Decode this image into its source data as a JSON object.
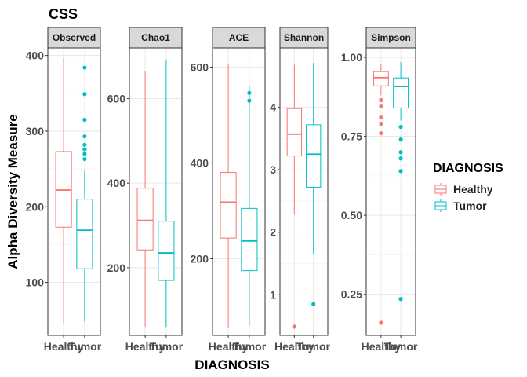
{
  "chart_data": {
    "type": "box",
    "title": "CSS",
    "xlabel": "DIAGNOSIS",
    "ylabel": "Alpha Diversity Measure",
    "legend": {
      "title": "DIAGNOSIS",
      "placement": "right",
      "entries": [
        {
          "label": "Healthy",
          "color": "#F8766D"
        },
        {
          "label": "Tumor",
          "color": "#00BFC4"
        }
      ]
    },
    "categories": [
      "Healthy",
      "Tumor"
    ],
    "grid": true,
    "facets": [
      {
        "name": "Observed",
        "ylim": [
          30,
          410
        ],
        "yticks": [
          100,
          200,
          300,
          400
        ],
        "yticklabels": [
          "100",
          "200",
          "300",
          "400"
        ],
        "boxes": [
          {
            "group": "Healthy",
            "min": 45,
            "q1": 173,
            "median": 222,
            "q3": 273,
            "max": 397
          },
          {
            "group": "Tumor",
            "min": 48,
            "q1": 118,
            "median": 169,
            "q3": 210,
            "max": 248
          }
        ],
        "outliers": {
          "Tumor": [
            384,
            349,
            315,
            293,
            282,
            276,
            270,
            263
          ]
        }
      },
      {
        "name": "Chao1",
        "ylim": [
          40,
          720
        ],
        "yticks": [
          200,
          400,
          600
        ],
        "yticklabels": [
          "200",
          "400",
          "600"
        ],
        "boxes": [
          {
            "group": "Healthy",
            "min": 60,
            "q1": 242,
            "median": 312,
            "q3": 388,
            "max": 665
          },
          {
            "group": "Tumor",
            "min": 60,
            "q1": 170,
            "median": 235,
            "q3": 310,
            "max": 690
          }
        ],
        "outliers": {}
      },
      {
        "name": "ACE",
        "ylim": [
          40,
          640
        ],
        "yticks": [
          200,
          400,
          600
        ],
        "yticklabels": [
          "200",
          "400",
          "600"
        ],
        "boxes": [
          {
            "group": "Healthy",
            "min": 55,
            "q1": 243,
            "median": 318,
            "q3": 380,
            "max": 607
          },
          {
            "group": "Tumor",
            "min": 60,
            "q1": 175,
            "median": 237,
            "q3": 305,
            "max": 560
          }
        ],
        "outliers": {
          "Tumor": [
            546,
            530
          ]
        }
      },
      {
        "name": "Shannon",
        "ylim": [
          0.35,
          4.95
        ],
        "yticks": [
          1,
          2,
          3,
          4
        ],
        "yticklabels": [
          "1",
          "2",
          "3",
          "4"
        ],
        "boxes": [
          {
            "group": "Healthy",
            "min": 2.28,
            "q1": 3.22,
            "median": 3.57,
            "q3": 3.98,
            "max": 4.68
          },
          {
            "group": "Tumor",
            "min": 1.65,
            "q1": 2.72,
            "median": 3.25,
            "q3": 3.72,
            "max": 4.71
          }
        ],
        "outliers": {
          "Healthy": [
            0.49
          ],
          "Tumor": [
            0.85
          ]
        }
      },
      {
        "name": "Simpson",
        "ylim": [
          0.12,
          1.03
        ],
        "yticks": [
          0.25,
          0.5,
          0.75,
          1.0
        ],
        "yticklabels": [
          "0.25",
          "0.50",
          "0.75",
          "1.00"
        ],
        "boxes": [
          {
            "group": "Healthy",
            "min": 0.88,
            "q1": 0.91,
            "median": 0.936,
            "q3": 0.955,
            "max": 0.98
          },
          {
            "group": "Tumor",
            "min": 0.8,
            "q1": 0.84,
            "median": 0.908,
            "q3": 0.935,
            "max": 0.985
          }
        ],
        "outliers": {
          "Healthy": [
            0.865,
            0.845,
            0.81,
            0.79,
            0.76,
            0.16
          ],
          "Tumor": [
            0.78,
            0.74,
            0.7,
            0.68,
            0.64,
            0.235
          ]
        }
      }
    ]
  }
}
